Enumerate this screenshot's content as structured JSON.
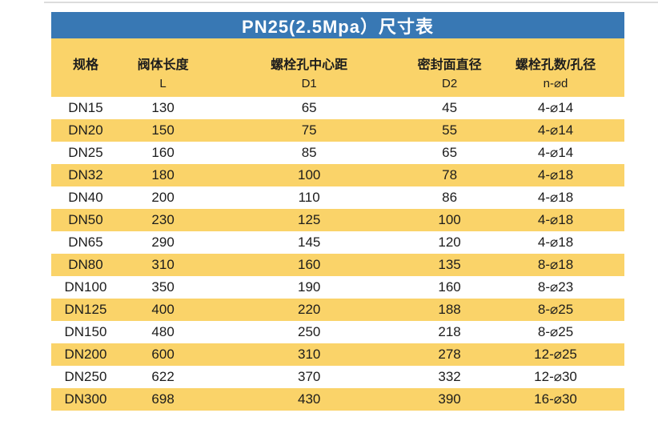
{
  "table": {
    "title": "PN25(2.5Mpa）尺寸表",
    "colors": {
      "title_bg": "#3878b4",
      "title_text": "#ffffff",
      "band_yellow": "#fad369",
      "band_white": "#ffffff",
      "text": "#1c1c1c"
    },
    "columns": [
      {
        "label": "规格",
        "sub": ""
      },
      {
        "label": "阀体长度",
        "sub": "L"
      },
      {
        "label": "螺栓孔中心距",
        "sub": "D1"
      },
      {
        "label": "密封面直径",
        "sub": "D2"
      },
      {
        "label": "螺栓孔数/孔径",
        "sub": "n-⌀d"
      }
    ],
    "rows": [
      [
        "DN15",
        "130",
        "65",
        "45",
        "4-⌀14"
      ],
      [
        "DN20",
        "150",
        "75",
        "55",
        "4-⌀14"
      ],
      [
        "DN25",
        "160",
        "85",
        "65",
        "4-⌀14"
      ],
      [
        "DN32",
        "180",
        "100",
        "78",
        "4-⌀18"
      ],
      [
        "DN40",
        "200",
        "110",
        "86",
        "4-⌀18"
      ],
      [
        "DN50",
        "230",
        "125",
        "100",
        "4-⌀18"
      ],
      [
        "DN65",
        "290",
        "145",
        "120",
        "4-⌀18"
      ],
      [
        "DN80",
        "310",
        "160",
        "135",
        "8-⌀18"
      ],
      [
        "DN100",
        "350",
        "190",
        "160",
        "8-⌀23"
      ],
      [
        "DN125",
        "400",
        "220",
        "188",
        "8-⌀25"
      ],
      [
        "DN150",
        "480",
        "250",
        "218",
        "8-⌀25"
      ],
      [
        "DN200",
        "600",
        "310",
        "278",
        "12-⌀25"
      ],
      [
        "DN250",
        "622",
        "370",
        "332",
        "12-⌀30"
      ],
      [
        "DN300",
        "698",
        "430",
        "390",
        "16-⌀30"
      ]
    ]
  }
}
